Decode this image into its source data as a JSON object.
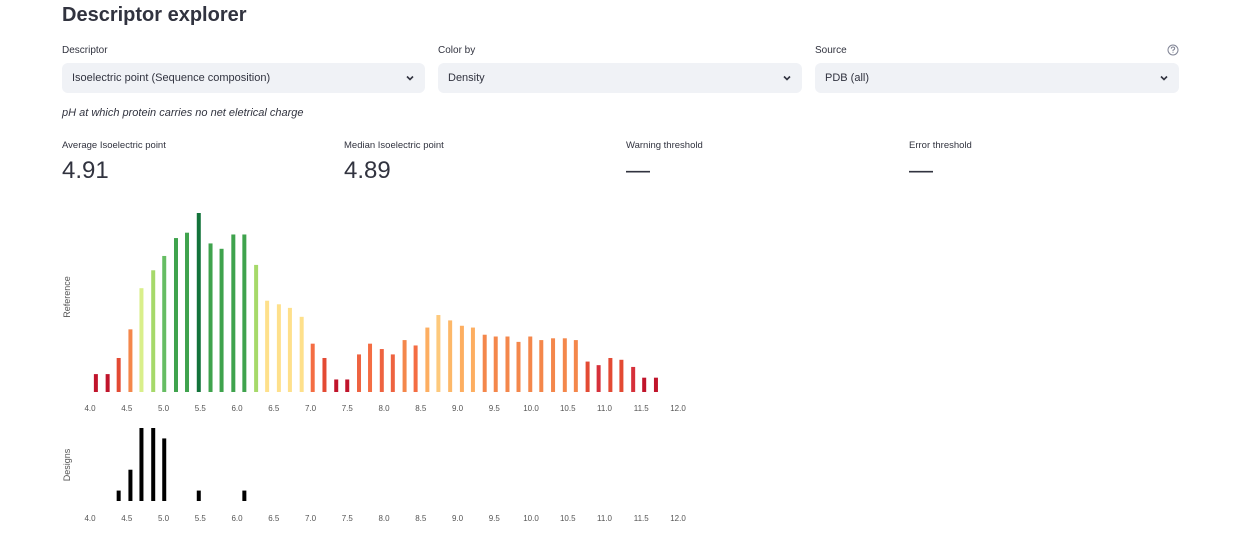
{
  "header": {
    "title": "Descriptor explorer"
  },
  "controls": [
    {
      "label": "Descriptor",
      "value": "Isoelectric point (Sequence composition)"
    },
    {
      "label": "Color by",
      "value": "Density"
    },
    {
      "label": "Source",
      "value": "PDB (all)"
    }
  ],
  "caption": "pH at which protein carries no net eletrical charge",
  "metrics": [
    {
      "label": "Average Isoelectric point",
      "value": 4.91
    },
    {
      "label": "Median Isoelectric point",
      "value": 4.89
    },
    {
      "label": "Warning threshold",
      "value": "—"
    },
    {
      "label": "Error threshold",
      "value": "—"
    }
  ],
  "chart_data": [
    {
      "type": "bar",
      "y_label": "Reference",
      "x": [
        4.08,
        4.24,
        4.39,
        4.55,
        4.7,
        4.86,
        5.01,
        5.17,
        5.32,
        5.48,
        5.64,
        5.79,
        5.95,
        6.1,
        6.26,
        6.41,
        6.57,
        6.72,
        6.88,
        7.03,
        7.19,
        7.35,
        7.5,
        7.66,
        7.81,
        7.97,
        8.12,
        8.28,
        8.43,
        8.59,
        8.74,
        8.9,
        9.06,
        9.21,
        9.37,
        9.52,
        9.68,
        9.83,
        9.99,
        10.14,
        10.3,
        10.46,
        10.61,
        10.77,
        10.92,
        11.08,
        11.23,
        11.39,
        11.54,
        11.7
      ],
      "values": [
        10,
        10,
        19,
        35,
        58,
        68,
        76,
        86,
        89,
        100,
        83,
        80,
        88,
        88,
        71,
        51,
        49,
        47,
        42,
        27,
        19,
        7,
        7,
        21,
        27,
        24,
        21,
        29,
        26,
        36,
        43,
        40,
        37,
        36,
        32,
        31,
        31,
        28,
        31,
        29,
        30,
        30,
        29,
        17,
        15,
        19,
        18,
        14,
        8,
        8
      ],
      "colors": [
        "#c0142b",
        "#c0142b",
        "#e34a33",
        "#f4874b",
        "#d9ef8b",
        "#a6d96a",
        "#66bd63",
        "#3fa34d",
        "#3fa34d",
        "#13733a",
        "#3fa34d",
        "#3fa34d",
        "#3fa34d",
        "#3fa34d",
        "#a6d96a",
        "#fee08b",
        "#fee08b",
        "#fee08b",
        "#fee08b",
        "#f46d43",
        "#e34a33",
        "#c0142b",
        "#c0142b",
        "#ee6340",
        "#f46d43",
        "#ee6340",
        "#ee6340",
        "#f4874b",
        "#f46d43",
        "#fdae61",
        "#fdc97c",
        "#fdb869",
        "#fdae61",
        "#fdae61",
        "#f4874b",
        "#f4874b",
        "#f4874b",
        "#f4874b",
        "#f4874b",
        "#f4874b",
        "#f4874b",
        "#f4874b",
        "#f4874b",
        "#e34a33",
        "#d6303a",
        "#e34a33",
        "#e34a33",
        "#d6303a",
        "#c0142b",
        "#c0142b"
      ],
      "xlim": [
        4,
        12
      ],
      "ylim": [
        0,
        100
      ],
      "xticks": [
        {
          "value": 4,
          "label": "4.0"
        },
        4.5,
        {
          "value": 5,
          "label": "5.0"
        },
        5.5,
        {
          "value": 6,
          "label": "6.0"
        },
        6.5,
        {
          "value": 7,
          "label": "7.0"
        },
        7.5,
        {
          "value": 8,
          "label": "8.0"
        },
        8.5,
        {
          "value": 9,
          "label": "9.0"
        },
        9.5,
        {
          "value": 10,
          "label": "10.0"
        },
        10.5,
        {
          "value": 11,
          "label": "11.0"
        },
        11.5,
        {
          "value": 12,
          "label": "12.0"
        }
      ]
    },
    {
      "type": "bar",
      "y_label": "Designs",
      "x": [
        4.39,
        4.55,
        4.7,
        4.86,
        5.01,
        5.48,
        6.1
      ],
      "values": [
        1,
        3,
        7,
        7,
        6,
        1,
        1
      ],
      "color": "#000000",
      "xlim": [
        4,
        12
      ],
      "ylim": [
        0,
        7
      ],
      "xticks": [
        {
          "value": 4,
          "label": "4.0"
        },
        4.5,
        {
          "value": 5,
          "label": "5.0"
        },
        5.5,
        {
          "value": 6,
          "label": "6.0"
        },
        6.5,
        {
          "value": 7,
          "label": "7.0"
        },
        7.5,
        {
          "value": 8,
          "label": "8.0"
        },
        8.5,
        {
          "value": 9,
          "label": "9.0"
        },
        9.5,
        {
          "value": 10,
          "label": "10.0"
        },
        10.5,
        {
          "value": 11,
          "label": "11.0"
        },
        11.5,
        {
          "value": 12,
          "label": "12.0"
        }
      ]
    }
  ]
}
